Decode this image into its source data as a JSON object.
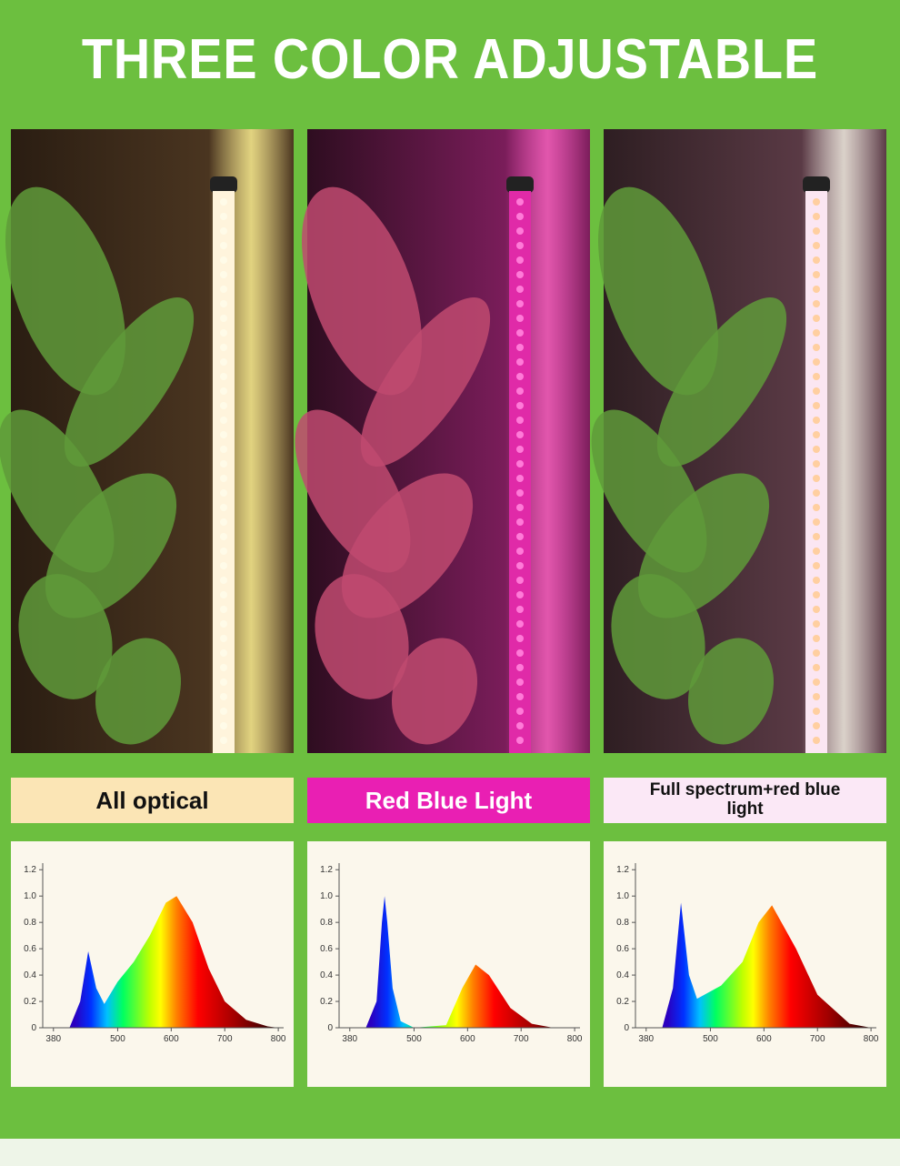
{
  "header": {
    "title": "THREE COLOR ADJUSTABLE"
  },
  "panels": [
    {
      "label": "All optical",
      "spectrum": {
        "xlim": [
          360,
          810
        ],
        "ylim": [
          0,
          1.25
        ],
        "xticks": [
          380,
          500,
          600,
          700,
          800
        ],
        "yticks": [
          0,
          0.2,
          0.4,
          0.6,
          0.8,
          {
            "value": 1,
            "label": "1.0"
          },
          1.2
        ],
        "x": [
          410,
          430,
          445,
          460,
          475,
          500,
          530,
          560,
          590,
          610,
          640,
          670,
          700,
          740,
          780,
          800
        ],
        "y": [
          0,
          0.2,
          0.58,
          0.3,
          0.18,
          0.35,
          0.5,
          0.7,
          0.95,
          1.0,
          0.8,
          0.45,
          0.2,
          0.06,
          0.01,
          0
        ]
      }
    },
    {
      "label": "Red Blue Light",
      "spectrum": {
        "xlim": [
          360,
          810
        ],
        "ylim": [
          0,
          1.25
        ],
        "xticks": [
          380,
          500,
          600,
          700,
          800
        ],
        "yticks": [
          0,
          0.2,
          0.4,
          0.6,
          0.8,
          {
            "value": 1,
            "label": "1.0"
          },
          1.2
        ],
        "x": [
          410,
          430,
          440,
          445,
          450,
          460,
          475,
          500,
          560,
          590,
          615,
          640,
          680,
          720,
          760
        ],
        "y": [
          0,
          0.2,
          0.8,
          1.0,
          0.8,
          0.3,
          0.05,
          0,
          0.02,
          0.3,
          0.48,
          0.4,
          0.15,
          0.03,
          0
        ]
      }
    },
    {
      "label": "Full spectrum+red blue light",
      "spectrum": {
        "xlim": [
          360,
          810
        ],
        "ylim": [
          0,
          1.25
        ],
        "xticks": [
          380,
          500,
          600,
          700,
          800
        ],
        "yticks": [
          0,
          0.2,
          0.4,
          0.6,
          0.8,
          {
            "value": 1,
            "label": "1.0"
          },
          1.2
        ],
        "x": [
          410,
          430,
          445,
          460,
          475,
          520,
          560,
          590,
          615,
          660,
          700,
          760,
          800
        ],
        "y": [
          0,
          0.3,
          0.95,
          0.4,
          0.22,
          0.32,
          0.5,
          0.8,
          0.93,
          0.6,
          0.25,
          0.03,
          0
        ]
      }
    }
  ]
}
